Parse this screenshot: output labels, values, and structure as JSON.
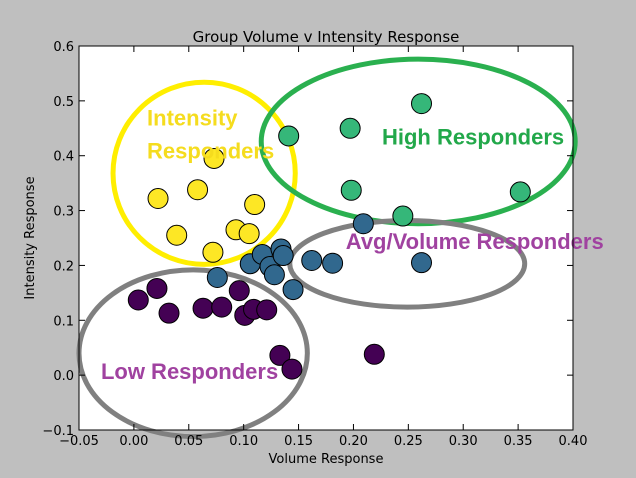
{
  "chart_data": {
    "type": "scatter",
    "title": "Group Volume v Intensity Response",
    "xlabel": "Volume Response",
    "ylabel": "Intensity Response",
    "xlim": [
      -0.05,
      0.4
    ],
    "ylim": [
      -0.1,
      0.6
    ],
    "x_ticks": [
      "−0.05",
      "0.00",
      "0.05",
      "0.10",
      "0.15",
      "0.20",
      "0.25",
      "0.30",
      "0.35",
      "0.40"
    ],
    "y_ticks": [
      "−0.1",
      "0.0",
      "0.1",
      "0.2",
      "0.3",
      "0.4",
      "0.5",
      "0.6"
    ],
    "grid": false,
    "colors": {
      "low": "#440154",
      "avg": "#31688e",
      "high": "#35b779",
      "intensity": "#fde725",
      "ring_intensity": "#ffee00",
      "ring_high": "#2ab04f",
      "ring_gray": "#808080",
      "text_intensity": "#f5dc1e",
      "text_high": "#22a84a",
      "text_purple": "#a042a0"
    },
    "series": [
      {
        "group": "low",
        "points": [
          [
            0.004,
            0.137
          ],
          [
            0.021,
            0.158
          ],
          [
            0.032,
            0.113
          ],
          [
            0.063,
            0.122
          ],
          [
            0.08,
            0.124
          ],
          [
            0.096,
            0.154
          ],
          [
            0.101,
            0.109
          ],
          [
            0.109,
            0.12
          ],
          [
            0.121,
            0.119
          ],
          [
            0.133,
            0.036
          ],
          [
            0.144,
            0.011
          ],
          [
            0.219,
            0.038
          ]
        ]
      },
      {
        "group": "avg",
        "points": [
          [
            0.076,
            0.178
          ],
          [
            0.106,
            0.203
          ],
          [
            0.117,
            0.22
          ],
          [
            0.124,
            0.198
          ],
          [
            0.128,
            0.183
          ],
          [
            0.134,
            0.23
          ],
          [
            0.136,
            0.218
          ],
          [
            0.145,
            0.156
          ],
          [
            0.162,
            0.209
          ],
          [
            0.181,
            0.204
          ],
          [
            0.209,
            0.276
          ],
          [
            0.262,
            0.205
          ]
        ]
      },
      {
        "group": "high",
        "points": [
          [
            0.141,
            0.436
          ],
          [
            0.197,
            0.45
          ],
          [
            0.198,
            0.337
          ],
          [
            0.245,
            0.29
          ],
          [
            0.262,
            0.495
          ],
          [
            0.352,
            0.334
          ]
        ]
      },
      {
        "group": "intensity",
        "points": [
          [
            0.022,
            0.322
          ],
          [
            0.039,
            0.255
          ],
          [
            0.058,
            0.338
          ],
          [
            0.073,
            0.395
          ],
          [
            0.072,
            0.224
          ],
          [
            0.093,
            0.265
          ],
          [
            0.105,
            0.258
          ],
          [
            0.11,
            0.311
          ]
        ]
      }
    ],
    "annotations": [
      {
        "id": "intensity",
        "lines": [
          "Intensity",
          "Responders"
        ],
        "color": "text_intensity",
        "anchor": "start",
        "at": [
          0.012,
          0.455
        ],
        "line_step": 0.06
      },
      {
        "id": "high",
        "lines": [
          "High Responders"
        ],
        "color": "text_high",
        "anchor": "start",
        "at": [
          0.226,
          0.42
        ],
        "line_step": 0
      },
      {
        "id": "avg",
        "lines": [
          "Avg/Volume Responders"
        ],
        "color": "text_purple",
        "anchor": "start",
        "at": [
          0.193,
          0.23
        ],
        "line_step": 0
      },
      {
        "id": "low",
        "lines": [
          "Low Responders"
        ],
        "color": "text_purple",
        "anchor": "start",
        "at": [
          -0.03,
          -0.007
        ],
        "line_step": 0
      }
    ],
    "ellipses": [
      {
        "id": "intensity",
        "cx": 0.064,
        "cy": 0.368,
        "rx": 0.083,
        "ry": 0.166,
        "color": "ring_intensity"
      },
      {
        "id": "high",
        "cx": 0.259,
        "cy": 0.426,
        "rx": 0.143,
        "ry": 0.15,
        "color": "ring_high"
      },
      {
        "id": "avg",
        "cx": 0.249,
        "cy": 0.203,
        "rx": 0.107,
        "ry": 0.079,
        "color": "ring_gray"
      },
      {
        "id": "low",
        "cx": 0.054,
        "cy": 0.04,
        "rx": 0.104,
        "ry": 0.152,
        "color": "ring_gray"
      }
    ]
  }
}
